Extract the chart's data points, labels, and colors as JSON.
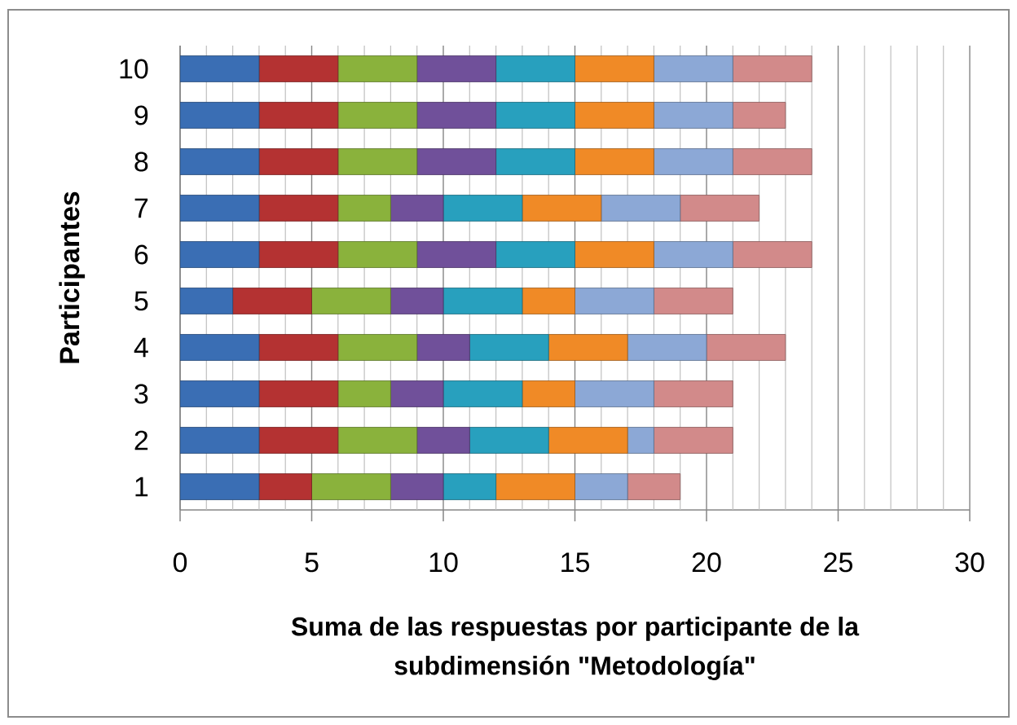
{
  "chart_data": {
    "type": "bar",
    "orientation": "horizontal",
    "stacked": true,
    "xlabel": "Suma de las respuestas por participante de la subdimensión \"Metodología\"",
    "ylabel": "Participantes",
    "categories": [
      "10",
      "9",
      "8",
      "7",
      "6",
      "5",
      "4",
      "3",
      "2",
      "1"
    ],
    "series": [
      {
        "color": "#3a6eb4",
        "values": [
          3,
          3,
          3,
          3,
          3,
          2,
          3,
          3,
          3,
          3
        ]
      },
      {
        "color": "#b43232",
        "values": [
          3,
          3,
          3,
          3,
          3,
          3,
          3,
          3,
          3,
          2
        ]
      },
      {
        "color": "#8ab23c",
        "values": [
          3,
          3,
          3,
          2,
          3,
          3,
          3,
          2,
          3,
          3
        ]
      },
      {
        "color": "#70509a",
        "values": [
          3,
          3,
          3,
          2,
          3,
          2,
          2,
          2,
          2,
          2
        ]
      },
      {
        "color": "#28a0be",
        "values": [
          3,
          3,
          3,
          3,
          3,
          3,
          3,
          3,
          3,
          2
        ]
      },
      {
        "color": "#f08a26",
        "values": [
          3,
          3,
          3,
          3,
          3,
          2,
          3,
          2,
          3,
          3
        ]
      },
      {
        "color": "#8ca8d6",
        "values": [
          3,
          3,
          3,
          3,
          3,
          3,
          3,
          3,
          1,
          2
        ]
      },
      {
        "color": "#d28a8a",
        "values": [
          3,
          2,
          3,
          3,
          3,
          3,
          3,
          3,
          3,
          2
        ]
      }
    ],
    "xlim": [
      0,
      30
    ],
    "xticks": [
      0,
      {
        "value": 1,
        "label": null
      },
      {
        "value": 2,
        "label": null
      },
      {
        "value": 3,
        "label": null
      },
      {
        "value": 4,
        "label": null
      },
      5,
      {
        "value": 6,
        "label": null
      },
      {
        "value": 7,
        "label": null
      },
      {
        "value": 8,
        "label": null
      },
      {
        "value": 9,
        "label": null
      },
      10,
      {
        "value": 11,
        "label": null
      },
      {
        "value": 12,
        "label": null
      },
      {
        "value": 13,
        "label": null
      },
      {
        "value": 14,
        "label": null
      },
      15,
      {
        "value": 16,
        "label": null
      },
      {
        "value": 17,
        "label": null
      },
      {
        "value": 18,
        "label": null
      },
      {
        "value": 19,
        "label": null
      },
      20,
      {
        "value": 21,
        "label": null
      },
      {
        "value": 22,
        "label": null
      },
      {
        "value": 23,
        "label": null
      },
      {
        "value": 24,
        "label": null
      },
      25,
      {
        "value": 26,
        "label": null
      },
      {
        "value": 27,
        "label": null
      },
      {
        "value": 28,
        "label": null
      },
      {
        "value": 29,
        "label": null
      },
      30
    ],
    "grid": "x"
  }
}
